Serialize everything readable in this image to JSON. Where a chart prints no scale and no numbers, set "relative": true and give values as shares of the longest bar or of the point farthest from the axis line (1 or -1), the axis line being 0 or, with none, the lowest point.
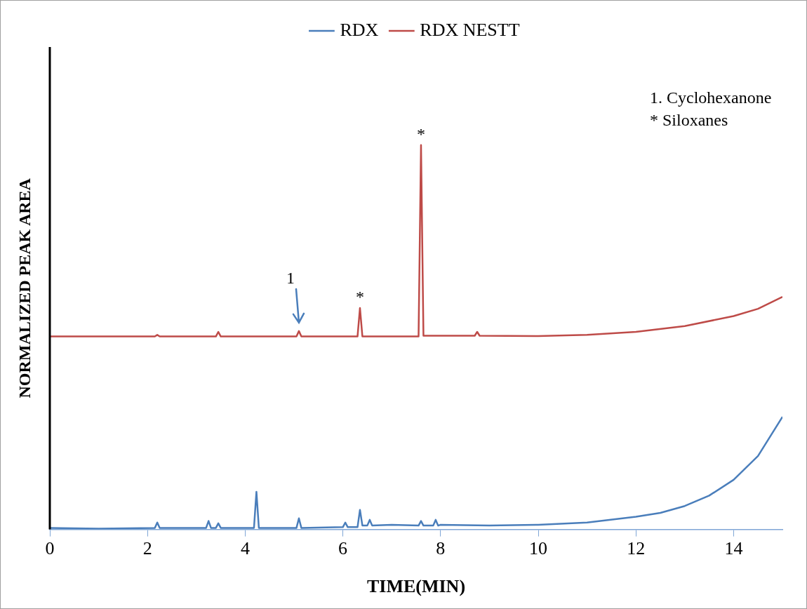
{
  "chart_data": {
    "type": "line",
    "relative": true,
    "xlabel": "TIME(MIN)",
    "ylabel": "NORMALIZED PEAK AREA",
    "x": [
      0,
      1,
      2.15,
      2.2,
      2.25,
      3.4,
      3.45,
      3.5,
      5.05,
      5.1,
      5.15,
      6.3,
      6.35,
      6.4,
      7.55,
      7.6,
      7.65,
      8.7,
      8.75,
      8.8,
      10,
      11,
      12,
      13,
      14,
      14.5,
      15
    ],
    "xlim": [
      0,
      15
    ],
    "xticks": [
      0,
      2,
      4,
      6,
      8,
      10,
      12,
      14
    ],
    "grid": false,
    "legend": "top",
    "marker": "none",
    "line_style": "solid",
    "series": [
      {
        "name": "RDX",
        "color": "#4a7ebb",
        "x": [
          0,
          1,
          2.15,
          2.2,
          2.25,
          3.2,
          3.25,
          3.3,
          3.4,
          3.45,
          3.5,
          4.18,
          4.23,
          4.28,
          5.05,
          5.1,
          5.15,
          6.0,
          6.05,
          6.1,
          6.3,
          6.35,
          6.4,
          6.5,
          6.55,
          6.6,
          7.0,
          7.55,
          7.6,
          7.65,
          7.85,
          7.9,
          7.95,
          8.0,
          9,
          10,
          11,
          12,
          12.5,
          13,
          13.5,
          14,
          14.5,
          15
        ],
        "values": [
          0.004,
          0.002,
          0.004,
          0.018,
          0.004,
          0.004,
          0.022,
          0.004,
          0.004,
          0.016,
          0.004,
          0.004,
          0.098,
          0.004,
          0.004,
          0.029,
          0.004,
          0.006,
          0.018,
          0.006,
          0.006,
          0.051,
          0.01,
          0.01,
          0.025,
          0.01,
          0.012,
          0.01,
          0.022,
          0.01,
          0.01,
          0.025,
          0.01,
          0.012,
          0.01,
          0.012,
          0.018,
          0.033,
          0.043,
          0.061,
          0.088,
          0.129,
          0.191,
          0.293
        ]
      },
      {
        "name": "RDX NESTT",
        "color": "#be4b48",
        "values": [
          0.502,
          0.502,
          0.502,
          0.506,
          0.502,
          0.502,
          0.514,
          0.502,
          0.502,
          0.516,
          0.502,
          0.502,
          0.576,
          0.502,
          0.502,
          1.0,
          0.504,
          0.504,
          0.514,
          0.504,
          0.503,
          0.506,
          0.514,
          0.529,
          0.555,
          0.574,
          0.605
        ]
      }
    ],
    "annotations": [
      {
        "text": "1",
        "x": 5.1,
        "y": 0.516
      },
      {
        "text": "*",
        "x": 6.35,
        "y": 0.576
      },
      {
        "text": "*",
        "x": 7.6,
        "y": 1.0
      },
      "1. Cyclohexanone",
      "* Siloxanes"
    ]
  }
}
